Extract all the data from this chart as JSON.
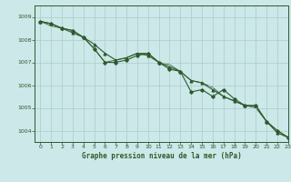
{
  "title": "Graphe pression niveau de la mer (hPa)",
  "background_color": "#cce8e8",
  "grid_color": "#aacccc",
  "line_color": "#2d5a2d",
  "border_color": "#2d5a2d",
  "xlim": [
    -0.5,
    23
  ],
  "ylim": [
    1003.5,
    1009.5
  ],
  "yticks": [
    1004,
    1005,
    1006,
    1007,
    1008,
    1009
  ],
  "xticks": [
    0,
    1,
    2,
    3,
    4,
    5,
    6,
    7,
    8,
    9,
    10,
    11,
    12,
    13,
    14,
    15,
    16,
    17,
    18,
    19,
    20,
    21,
    22,
    23
  ],
  "series": [
    [
      1008.8,
      1008.7,
      1008.5,
      1008.4,
      1008.1,
      1007.6,
      1007.0,
      1007.0,
      1007.1,
      1007.3,
      1007.4,
      1007.0,
      1006.7,
      1006.6,
      1005.7,
      1005.8,
      1005.5,
      1005.8,
      1005.4,
      1005.1,
      1005.1,
      1004.4,
      1004.0,
      1003.7
    ],
    [
      1008.8,
      1008.7,
      1008.5,
      1008.3,
      1008.1,
      1007.8,
      1007.4,
      1007.1,
      1007.2,
      1007.4,
      1007.3,
      1007.0,
      1006.8,
      1006.6,
      1006.2,
      1006.1,
      1005.8,
      1005.5,
      1005.3,
      1005.1,
      1005.1,
      1004.4,
      1003.9,
      1003.7
    ],
    [
      1008.8,
      1008.6,
      1008.5,
      1008.4,
      1008.1,
      1007.6,
      1007.0,
      1007.1,
      1007.2,
      1007.4,
      1007.4,
      1007.0,
      1006.9,
      1006.6,
      1006.2,
      1006.1,
      1005.9,
      1005.5,
      1005.3,
      1005.1,
      1005.0,
      1004.4,
      1004.0,
      1003.7
    ]
  ],
  "figsize": [
    3.2,
    2.0
  ],
  "dpi": 100
}
